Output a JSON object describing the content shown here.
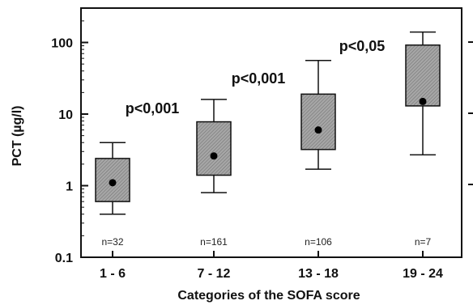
{
  "chart_data": {
    "type": "box",
    "title": "",
    "xlabel": "Categories of the SOFA score",
    "ylabel": "PCT (µg/l)",
    "yscale": "log",
    "ylim": [
      0.1,
      200
    ],
    "yticks": [
      "0.1",
      "1",
      "10",
      "100"
    ],
    "categories": [
      "1 - 6",
      "7 - 12",
      "13 - 18",
      "19 - 24"
    ],
    "boxes": [
      {
        "category": "1 - 6",
        "whisker_low": 0.4,
        "q1": 0.6,
        "median": 1.1,
        "q3": 2.4,
        "whisker_high": 4.0,
        "n_label": "n=32"
      },
      {
        "category": "7 - 12",
        "whisker_low": 0.8,
        "q1": 1.4,
        "median": 2.6,
        "q3": 7.8,
        "whisker_high": 16,
        "n_label": "n=161"
      },
      {
        "category": "13 - 18",
        "whisker_low": 1.7,
        "q1": 3.2,
        "median": 6.0,
        "q3": 19,
        "whisker_high": 56,
        "n_label": "n=106"
      },
      {
        "category": "19 - 24",
        "whisker_low": 2.7,
        "q1": 13,
        "median": 15,
        "q3": 92,
        "whisker_high": 140,
        "n_label": "n=7"
      }
    ],
    "annotations": [
      {
        "text": "p<0,001",
        "between": [
          "1 - 6",
          "7 - 12"
        ],
        "y": 15
      },
      {
        "text": "p<0,001",
        "between": [
          "7 - 12",
          "13 - 18"
        ],
        "y": 45
      },
      {
        "text": "p<0,05",
        "between": [
          "13 - 18",
          "19 - 24"
        ],
        "y": 100
      }
    ],
    "grid": false,
    "box_color": "#9a9a9a"
  }
}
